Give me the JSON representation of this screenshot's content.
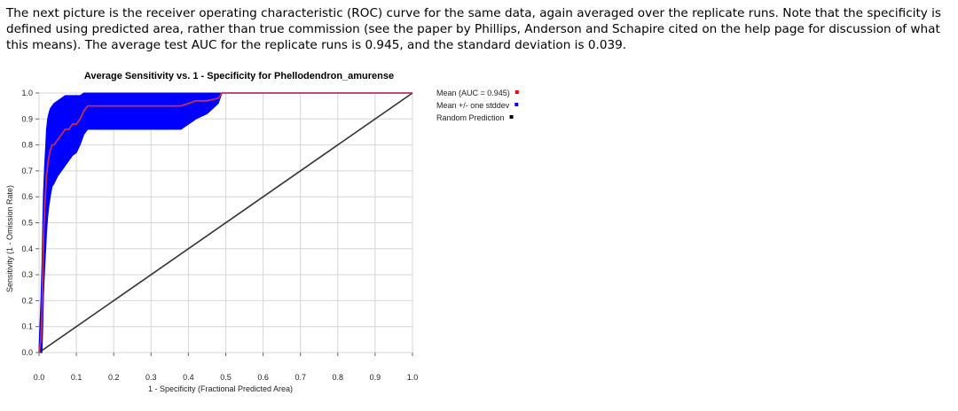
{
  "paragraph": "The next picture is the receiver operating characteristic (ROC) curve for the same data, again averaged over the replicate runs. Note that the specificity is defined using predicted area, rather than true commission (see the paper by Phillips, Anderson and Schapire cited on the help page for discussion of what this means). The average test AUC for the replicate runs is 0.945, and the standard deviation is 0.039.",
  "chart_data": {
    "type": "line",
    "title": "Average Sensitivity vs. 1 - Specificity for Phellodendron_amurense",
    "xlabel": "1 - Specificity (Fractional Predicted Area)",
    "ylabel": "Sensitivity (1 - Omission Rate)",
    "xlim": [
      0,
      1
    ],
    "ylim": [
      0,
      1
    ],
    "x_ticks": [
      "0.0",
      "0.1",
      "0.2",
      "0.3",
      "0.4",
      "0.5",
      "0.6",
      "0.7",
      "0.8",
      "0.9",
      "1.0"
    ],
    "y_ticks": [
      "0.0",
      "0.1",
      "0.2",
      "0.3",
      "0.4",
      "0.5",
      "0.6",
      "0.7",
      "0.8",
      "0.9",
      "1.0"
    ],
    "grid": true,
    "legend_position": "right",
    "series": [
      {
        "name": "Mean (AUC = 0.945)",
        "color": "#ff0000",
        "x": [
          0.0,
          0.005,
          0.008,
          0.01,
          0.012,
          0.015,
          0.018,
          0.02,
          0.023,
          0.026,
          0.03,
          0.035,
          0.04,
          0.05,
          0.06,
          0.07,
          0.08,
          0.09,
          0.1,
          0.11,
          0.12,
          0.13,
          0.15,
          0.2,
          0.3,
          0.38,
          0.4,
          0.42,
          0.45,
          0.48,
          0.49,
          1.0
        ],
        "y": [
          0.0,
          0.05,
          0.15,
          0.3,
          0.45,
          0.55,
          0.63,
          0.68,
          0.72,
          0.75,
          0.78,
          0.8,
          0.8,
          0.82,
          0.84,
          0.86,
          0.86,
          0.88,
          0.88,
          0.9,
          0.93,
          0.95,
          0.95,
          0.95,
          0.95,
          0.95,
          0.96,
          0.97,
          0.97,
          0.98,
          1.0,
          1.0
        ]
      },
      {
        "name": "Mean +/- one stddev",
        "color": "#0000ff",
        "x": [
          0.0,
          0.005,
          0.008,
          0.01,
          0.012,
          0.015,
          0.018,
          0.02,
          0.023,
          0.026,
          0.03,
          0.035,
          0.04,
          0.05,
          0.06,
          0.07,
          0.08,
          0.09,
          0.1,
          0.11,
          0.12,
          0.13,
          0.15,
          0.2,
          0.3,
          0.38,
          0.4,
          0.42,
          0.45,
          0.48,
          0.49,
          1.0
        ],
        "upper": [
          0.02,
          0.2,
          0.35,
          0.5,
          0.62,
          0.72,
          0.8,
          0.86,
          0.9,
          0.92,
          0.94,
          0.95,
          0.96,
          0.97,
          0.98,
          0.99,
          0.99,
          0.99,
          0.99,
          0.99,
          1.0,
          1.0,
          1.0,
          1.0,
          1.0,
          1.0,
          1.0,
          1.0,
          1.0,
          1.0,
          1.0,
          1.0
        ],
        "lower": [
          0.0,
          0.0,
          0.0,
          0.1,
          0.22,
          0.32,
          0.4,
          0.46,
          0.52,
          0.56,
          0.6,
          0.64,
          0.65,
          0.68,
          0.7,
          0.72,
          0.74,
          0.76,
          0.77,
          0.8,
          0.84,
          0.86,
          0.86,
          0.86,
          0.86,
          0.86,
          0.88,
          0.9,
          0.92,
          0.96,
          1.0,
          1.0
        ]
      },
      {
        "name": "Random Prediction",
        "color": "#000000",
        "x": [
          0.0,
          1.0
        ],
        "y": [
          0.0,
          1.0
        ]
      }
    ]
  }
}
